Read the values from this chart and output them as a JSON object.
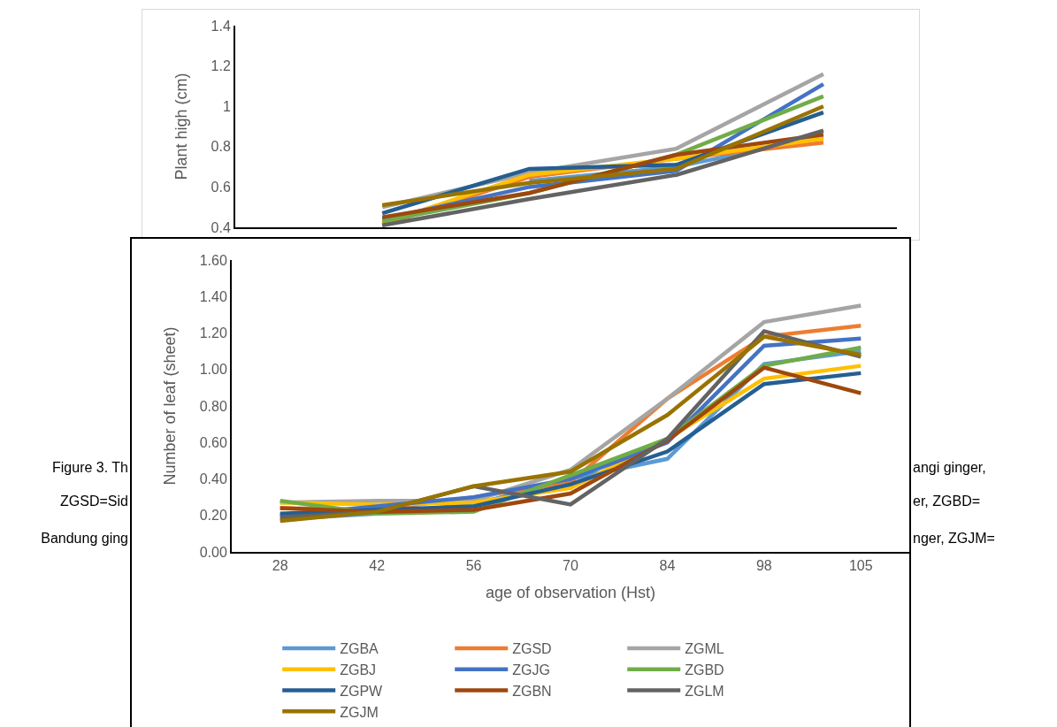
{
  "chart_data": [
    {
      "type": "line",
      "ylabel": "Plant high (cm)",
      "categories": [
        null,
        null,
        null,
        null
      ],
      "ylim": [
        0.4,
        1.4
      ],
      "yticks": [
        0.4,
        0.6,
        0.8,
        1,
        1.2,
        1.4
      ],
      "tick_labels": "y",
      "grid": false,
      "legend": false,
      "marker": "none",
      "line_style": "solid",
      "annotations": [
        "Figure 3. Th",
        "angi ginger,",
        "ZGSD=Sid",
        "er, ZGBD=",
        "Bandung ging",
        "nger, ZGJM="
      ],
      "series": [
        {
          "color": "#5b9bd5",
          "values": [
            null,
            0.63,
            0.7,
            0.85
          ]
        },
        {
          "color": "#ed7d31",
          "values": [
            0.41,
            0.65,
            0.74,
            0.82
          ]
        },
        {
          "color": "#a5a5a5",
          "values": [
            0.5,
            0.67,
            0.79,
            1.16
          ]
        },
        {
          "color": "#ffc000",
          "values": [
            0.42,
            0.66,
            0.74,
            0.84
          ]
        },
        {
          "color": "#4472c4",
          "values": [
            0.44,
            0.6,
            0.68,
            1.11
          ]
        },
        {
          "color": "#70ad47",
          "values": [
            0.43,
            0.57,
            0.76,
            1.05
          ]
        },
        {
          "color": "#255e91",
          "values": [
            0.47,
            0.69,
            0.71,
            0.97
          ]
        },
        {
          "color": "#9e480e",
          "values": [
            0.45,
            0.57,
            0.76,
            0.86
          ]
        },
        {
          "color": "#636363",
          "values": [
            0.41,
            0.54,
            0.66,
            0.88
          ]
        },
        {
          "color": "#997300",
          "values": [
            0.51,
            0.62,
            0.69,
            1.0
          ]
        }
      ]
    },
    {
      "type": "line",
      "xlabel": "age of observation (Hst)",
      "ylabel": "Number of leaf (sheet)",
      "categories": [
        "28",
        "42",
        "56",
        "70",
        "84",
        "98",
        "105"
      ],
      "ylim": [
        0,
        1.6
      ],
      "yticks": [
        {
          "value": 0,
          "label": "0.00"
        },
        {
          "value": 0.2,
          "label": "0.20"
        },
        {
          "value": 0.4,
          "label": "0.40"
        },
        {
          "value": 0.6,
          "label": "0.60"
        },
        {
          "value": 0.8,
          "label": "0.80"
        },
        {
          "value": 1,
          "label": "1.00"
        },
        {
          "value": 1.2,
          "label": "1.20"
        },
        {
          "value": 1.4,
          "label": "1.40"
        },
        {
          "value": 1.6,
          "label": "1.60"
        }
      ],
      "grid": false,
      "legend": "bottom",
      "marker": "none",
      "line_style": "solid",
      "series": [
        {
          "name": "ZGBA",
          "color": "#5b9bd5",
          "values": [
            0.18,
            0.21,
            0.26,
            0.4,
            0.51,
            1.03,
            1.1
          ]
        },
        {
          "name": "ZGSD",
          "color": "#ed7d31",
          "values": [
            0.24,
            0.23,
            0.3,
            0.38,
            0.84,
            1.18,
            1.24
          ]
        },
        {
          "name": "ZGML",
          "color": "#a5a5a5",
          "values": [
            0.27,
            0.28,
            0.28,
            0.45,
            0.84,
            1.26,
            1.35
          ]
        },
        {
          "name": "ZGBJ",
          "color": "#ffc000",
          "values": [
            0.27,
            0.26,
            0.27,
            0.35,
            0.62,
            0.95,
            1.02
          ]
        },
        {
          "name": "ZGJG",
          "color": "#4472c4",
          "values": [
            0.2,
            0.25,
            0.3,
            0.4,
            0.6,
            1.13,
            1.17
          ]
        },
        {
          "name": "ZGBD",
          "color": "#70ad47",
          "values": [
            0.28,
            0.21,
            0.22,
            0.42,
            0.62,
            1.02,
            1.12
          ]
        },
        {
          "name": "ZGPW",
          "color": "#255e91",
          "values": [
            0.21,
            0.23,
            0.25,
            0.37,
            0.55,
            0.92,
            0.98
          ]
        },
        {
          "name": "ZGBN",
          "color": "#9e480e",
          "values": [
            0.24,
            0.22,
            0.23,
            0.32,
            0.61,
            1.01,
            0.87
          ]
        },
        {
          "name": "ZGLM",
          "color": "#636363",
          "values": [
            0.19,
            0.22,
            0.36,
            0.26,
            0.62,
            1.21,
            1.07
          ]
        },
        {
          "name": "ZGJM",
          "color": "#997300",
          "values": [
            0.17,
            0.22,
            0.36,
            0.44,
            0.75,
            1.18,
            1.08
          ]
        }
      ]
    }
  ]
}
